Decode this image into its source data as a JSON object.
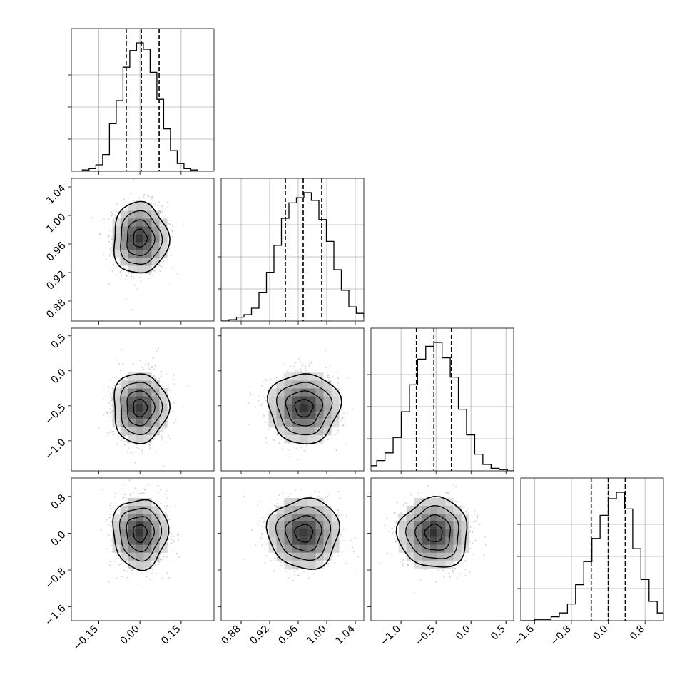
{
  "chart_data": {
    "type": "corner",
    "parameters": [
      {
        "mean": 0.0,
        "sigma": 0.05,
        "range": [
          -0.25,
          0.27
        ],
        "ticks": [
          -0.15,
          0.0,
          0.15
        ],
        "tick_labels": [
          "−0.15",
          "0.00",
          "0.15"
        ],
        "quantiles": [
          -0.05,
          0.005,
          0.07
        ]
      },
      {
        "mean": 0.968,
        "sigma": 0.025,
        "range": [
          0.852,
          1.052
        ],
        "ticks": [
          0.88,
          0.92,
          0.96,
          1.0,
          1.04
        ],
        "tick_labels": [
          "0.88",
          "0.92",
          "0.96",
          "1.00",
          "1.04"
        ],
        "quantiles": [
          0.942,
          0.967,
          0.993
        ]
      },
      {
        "mean": -0.53,
        "sigma": 0.25,
        "range": [
          -1.43,
          0.61
        ],
        "ticks": [
          -1.0,
          -0.5,
          0.0,
          0.5
        ],
        "tick_labels": [
          "−1.0",
          "−0.5",
          "0.0",
          "0.5"
        ],
        "quantiles": [
          -0.78,
          -0.53,
          -0.28
        ]
      },
      {
        "mean": 0.0,
        "sigma": 0.38,
        "range": [
          -1.9,
          1.2
        ],
        "ticks": [
          -1.6,
          -0.8,
          0.0,
          0.8
        ],
        "tick_labels": [
          "−1.6",
          "−0.8",
          "0.0",
          "0.8"
        ],
        "quantiles": [
          -0.37,
          0.0,
          0.37
        ]
      }
    ],
    "histograms": [
      [
        0.01,
        0.02,
        0.05,
        0.13,
        0.37,
        0.55,
        0.81,
        0.94,
        1.0,
        0.95,
        0.77,
        0.56,
        0.33,
        0.16,
        0.06,
        0.02,
        0.01
      ],
      [
        0.01,
        0.03,
        0.05,
        0.1,
        0.22,
        0.38,
        0.59,
        0.8,
        0.92,
        0.96,
        1.0,
        0.94,
        0.79,
        0.62,
        0.4,
        0.24,
        0.11,
        0.06,
        0.03,
        0.01
      ],
      [
        0.01,
        0.04,
        0.08,
        0.14,
        0.26,
        0.46,
        0.67,
        0.87,
        0.97,
        1.0,
        0.88,
        0.73,
        0.48,
        0.28,
        0.13,
        0.05,
        0.02,
        0.01
      ],
      [
        0.01,
        0.01,
        0.03,
        0.06,
        0.13,
        0.28,
        0.46,
        0.64,
        0.82,
        0.95,
        1.0,
        0.87,
        0.56,
        0.32,
        0.15,
        0.06,
        0.03,
        0.01
      ]
    ],
    "contour_levels_sigma": [
      0.5,
      1.0,
      1.5,
      2.0
    ],
    "grid": true,
    "quantile_style": "dashed"
  }
}
